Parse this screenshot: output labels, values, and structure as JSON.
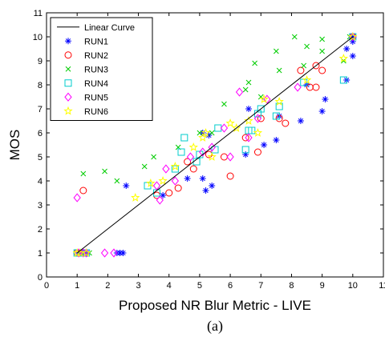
{
  "chart_data": {
    "type": "scatter",
    "xlabel": "Proposed NR Blur Metric - LIVE",
    "ylabel": "MOS",
    "caption": "(a)",
    "xlim": [
      0,
      11
    ],
    "ylim": [
      0,
      11
    ],
    "xticks": [
      "0",
      "1",
      "2",
      "3",
      "4",
      "5",
      "6",
      "7",
      "8",
      "9",
      "10",
      "11"
    ],
    "yticks": [
      "0",
      "1",
      "2",
      "3",
      "4",
      "5",
      "6",
      "7",
      "8",
      "9",
      "10",
      "11"
    ],
    "grid": false,
    "legend_position": "top-left",
    "line": {
      "name": "Linear Curve",
      "color": "#000000",
      "points": [
        [
          1.0,
          1.0
        ],
        [
          10.0,
          10.0
        ]
      ]
    },
    "series": [
      {
        "name": "RUN1",
        "marker": "asterisk",
        "color": "#0000ff",
        "points": [
          [
            1.05,
            1
          ],
          [
            1.1,
            1
          ],
          [
            1.2,
            1
          ],
          [
            1.3,
            1
          ],
          [
            2.3,
            1
          ],
          [
            2.4,
            1
          ],
          [
            2.5,
            1
          ],
          [
            2.6,
            3.8
          ],
          [
            3.8,
            3.4
          ],
          [
            4.6,
            4.1
          ],
          [
            5.1,
            4.1
          ],
          [
            5.2,
            3.6
          ],
          [
            5.4,
            3.8
          ],
          [
            5.1,
            6.0
          ],
          [
            5.3,
            5.9
          ],
          [
            6.5,
            5.1
          ],
          [
            6.6,
            7.0
          ],
          [
            7.1,
            5.5
          ],
          [
            7.5,
            5.7
          ],
          [
            7.6,
            6.7
          ],
          [
            8.3,
            6.5
          ],
          [
            9.0,
            6.9
          ],
          [
            8.5,
            8.0
          ],
          [
            9.1,
            7.4
          ],
          [
            9.8,
            8.2
          ],
          [
            9.8,
            9.5
          ],
          [
            10.0,
            9.2
          ],
          [
            10.0,
            10.0
          ],
          [
            10.0,
            9.8
          ]
        ]
      },
      {
        "name": "RUN2",
        "marker": "circle",
        "color": "#ff0000",
        "points": [
          [
            1.0,
            1
          ],
          [
            1.1,
            1
          ],
          [
            1.2,
            1
          ],
          [
            1.2,
            3.6
          ],
          [
            3.6,
            3.4
          ],
          [
            4.0,
            3.5
          ],
          [
            4.3,
            3.7
          ],
          [
            4.6,
            4.8
          ],
          [
            4.8,
            4.5
          ],
          [
            5.3,
            5.1
          ],
          [
            5.8,
            5.0
          ],
          [
            6.0,
            4.2
          ],
          [
            6.5,
            5.8
          ],
          [
            6.9,
            5.2
          ],
          [
            7.0,
            6.6
          ],
          [
            7.6,
            6.6
          ],
          [
            7.8,
            6.4
          ],
          [
            8.3,
            8.6
          ],
          [
            8.6,
            7.9
          ],
          [
            8.8,
            7.9
          ],
          [
            8.8,
            8.8
          ],
          [
            9.0,
            8.6
          ],
          [
            10.0,
            10.0
          ]
        ]
      },
      {
        "name": "RUN3",
        "marker": "cross",
        "color": "#00cc00",
        "points": [
          [
            1.2,
            4.3
          ],
          [
            1.9,
            4.4
          ],
          [
            2.3,
            4.0
          ],
          [
            3.2,
            4.6
          ],
          [
            3.5,
            5.0
          ],
          [
            4.3,
            5.4
          ],
          [
            5.0,
            6.0
          ],
          [
            5.4,
            6.0
          ],
          [
            5.8,
            7.2
          ],
          [
            6.5,
            7.8
          ],
          [
            6.6,
            8.1
          ],
          [
            6.8,
            8.9
          ],
          [
            7.0,
            7.5
          ],
          [
            7.5,
            9.4
          ],
          [
            7.6,
            8.6
          ],
          [
            8.1,
            10.0
          ],
          [
            8.5,
            9.6
          ],
          [
            8.4,
            8.8
          ],
          [
            9.0,
            9.9
          ],
          [
            9.0,
            9.4
          ],
          [
            9.7,
            9.0
          ],
          [
            9.9,
            10.0
          ],
          [
            1.2,
            1.0
          ],
          [
            1.4,
            1.0
          ]
        ]
      },
      {
        "name": "RUN4",
        "marker": "square",
        "color": "#00cccc",
        "points": [
          [
            1.0,
            1
          ],
          [
            1.1,
            1
          ],
          [
            1.2,
            1
          ],
          [
            1.3,
            1
          ],
          [
            3.3,
            3.8
          ],
          [
            3.6,
            3.5
          ],
          [
            4.2,
            4.5
          ],
          [
            4.4,
            5.2
          ],
          [
            4.5,
            5.8
          ],
          [
            4.9,
            4.8
          ],
          [
            5.0,
            5.1
          ],
          [
            5.5,
            5.3
          ],
          [
            5.6,
            6.2
          ],
          [
            6.5,
            5.3
          ],
          [
            6.6,
            6.1
          ],
          [
            6.7,
            6.1
          ],
          [
            6.9,
            6.8
          ],
          [
            7.0,
            7.0
          ],
          [
            7.5,
            6.7
          ],
          [
            7.6,
            7.1
          ],
          [
            8.4,
            8.1
          ],
          [
            9.7,
            8.2
          ],
          [
            10.0,
            10.0
          ]
        ]
      },
      {
        "name": "RUN5",
        "marker": "diamond",
        "color": "#ff00ff",
        "points": [
          [
            1.0,
            3.3
          ],
          [
            1.05,
            1
          ],
          [
            1.2,
            1
          ],
          [
            1.3,
            1
          ],
          [
            1.9,
            1.0
          ],
          [
            2.2,
            1.0
          ],
          [
            3.7,
            3.2
          ],
          [
            3.6,
            3.8
          ],
          [
            3.9,
            4.5
          ],
          [
            4.2,
            4.0
          ],
          [
            4.7,
            5.0
          ],
          [
            5.1,
            5.2
          ],
          [
            5.4,
            5.4
          ],
          [
            5.8,
            6.2
          ],
          [
            6.0,
            5.0
          ],
          [
            6.3,
            7.7
          ],
          [
            6.6,
            5.8
          ],
          [
            6.9,
            6.6
          ],
          [
            7.2,
            7.4
          ],
          [
            8.2,
            7.9
          ],
          [
            10.0,
            10.0
          ]
        ]
      },
      {
        "name": "RUN6",
        "marker": "star",
        "color": "#ffff00",
        "points": [
          [
            1.0,
            1
          ],
          [
            1.1,
            1
          ],
          [
            1.3,
            1
          ],
          [
            2.9,
            3.3
          ],
          [
            3.4,
            3.9
          ],
          [
            3.8,
            4.0
          ],
          [
            4.2,
            4.6
          ],
          [
            4.8,
            5.4
          ],
          [
            5.1,
            5.8
          ],
          [
            5.2,
            6.0
          ],
          [
            5.4,
            5.0
          ],
          [
            6.0,
            6.4
          ],
          [
            6.2,
            6.2
          ],
          [
            6.6,
            6.5
          ],
          [
            6.9,
            6.0
          ],
          [
            7.1,
            7.4
          ],
          [
            7.6,
            7.3
          ],
          [
            8.5,
            8.2
          ],
          [
            9.7,
            9.1
          ],
          [
            10.0,
            10.0
          ]
        ]
      }
    ]
  }
}
